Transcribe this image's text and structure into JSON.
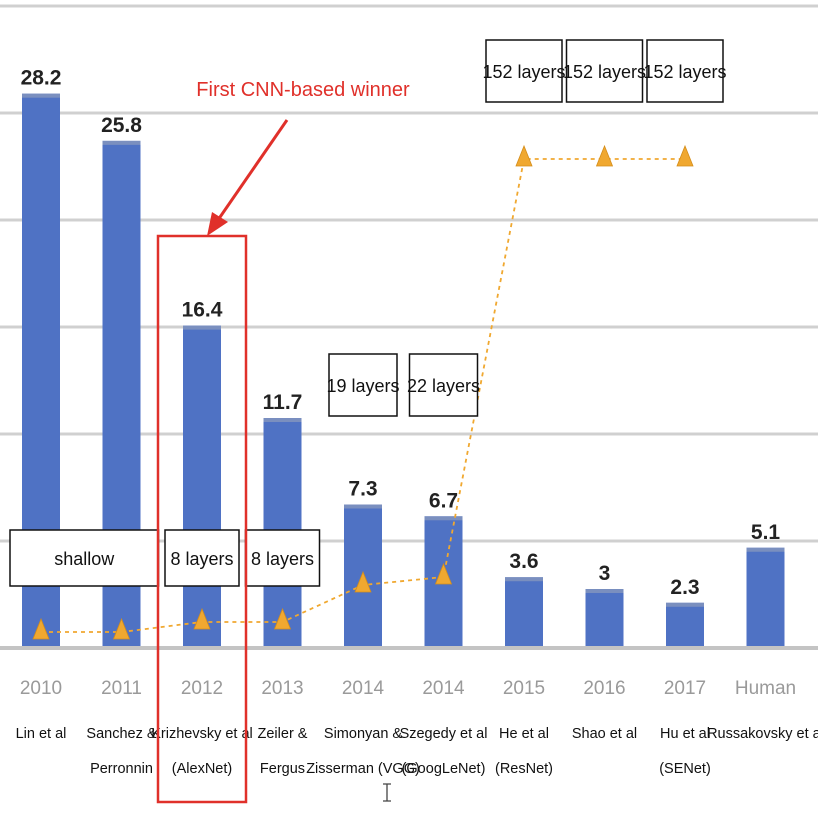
{
  "chart_data": {
    "type": "bar",
    "categories": [
      "2010",
      "2011",
      "2012",
      "2013",
      "2014",
      "2014",
      "2015",
      "2016",
      "2017",
      "Human"
    ],
    "authors": [
      [
        "Lin et al"
      ],
      [
        "Sanchez &",
        "Perronnin"
      ],
      [
        "Krizhevsky et al",
        "(AlexNet)"
      ],
      [
        "Zeiler &",
        "Fergus"
      ],
      [
        "Simonyan &",
        "Zisserman (VGG)"
      ],
      [
        "Szegedy et al",
        "(GoogLeNet)"
      ],
      [
        "He et al",
        "(ResNet)"
      ],
      [
        "Shao et al"
      ],
      [
        "Hu et al",
        "(SENet)"
      ],
      [
        "Russakovsky et al"
      ]
    ],
    "values": [
      28.2,
      25.8,
      16.4,
      11.7,
      7.3,
      6.7,
      3.6,
      3,
      2.3,
      5.1
    ],
    "value_labels": [
      "28.2",
      "25.8",
      "16.4",
      "11.7",
      "7.3",
      "6.7",
      "3.6",
      "3",
      "2.3",
      "5.1"
    ],
    "depth_series": {
      "marker_levels": [
        1,
        1,
        8,
        8,
        19,
        22,
        152,
        152,
        152
      ],
      "layer_labels": [
        {
          "text": "shallow",
          "categories": [
            0,
            1
          ]
        },
        {
          "text": "8 layers",
          "categories": [
            2
          ]
        },
        {
          "text": "8 layers",
          "categories": [
            3
          ]
        },
        {
          "text": "19 layers",
          "categories": [
            4
          ]
        },
        {
          "text": "22 layers",
          "categories": [
            5
          ]
        },
        {
          "text": "152 layers",
          "categories": [
            6
          ]
        },
        {
          "text": "152 layers",
          "categories": [
            7
          ]
        },
        {
          "text": "152 layers",
          "categories": [
            8
          ]
        }
      ]
    },
    "annotation": {
      "text": "First CNN-based winner",
      "highlight_category": 2
    },
    "ylim": [
      0,
      30
    ],
    "grid": true,
    "colors": {
      "bar": "#4f72c4",
      "depth_markers": "#f0a830",
      "annotation": "#e0302a",
      "human_year_label": "#9a9a9a"
    }
  }
}
